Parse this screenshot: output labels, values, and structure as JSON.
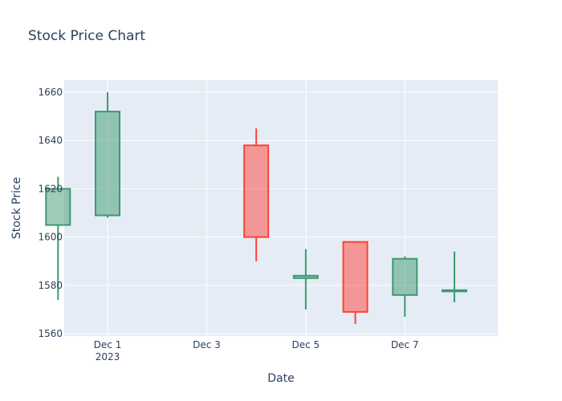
{
  "chart_data": {
    "type": "candlestick",
    "title": "Stock Price Chart",
    "xlabel": "Date",
    "ylabel": "Stock Price",
    "year_label": "2023",
    "ylim": [
      1559,
      1665
    ],
    "xlim": [
      "2023-11-30T03:00",
      "2023-12-08T21:00"
    ],
    "y_ticks": [
      1560,
      1580,
      1600,
      1620,
      1640,
      1660
    ],
    "x_ticks": [
      {
        "date": "2023-12-01",
        "label": "Dec 1"
      },
      {
        "date": "2023-12-03",
        "label": "Dec 3"
      },
      {
        "date": "2023-12-05",
        "label": "Dec 5"
      },
      {
        "date": "2023-12-07",
        "label": "Dec 7"
      }
    ],
    "colors": {
      "increasing_line": "#3d9970",
      "increasing_fill": "rgba(61,153,112,0.5)",
      "decreasing_line": "#ff4136",
      "decreasing_fill": "rgba(255,65,54,0.5)",
      "plot_bg": "#e5ecf6",
      "grid": "#ffffff",
      "text": "#2a3f5f"
    },
    "grid": true,
    "legend": false,
    "candles": [
      {
        "date": "2023-11-30",
        "open": 1605,
        "high": 1625,
        "low": 1574,
        "close": 1620
      },
      {
        "date": "2023-12-01",
        "open": 1609,
        "high": 1660,
        "low": 1608,
        "close": 1652
      },
      {
        "date": "2023-12-04",
        "open": 1638,
        "high": 1645,
        "low": 1590,
        "close": 1600
      },
      {
        "date": "2023-12-05",
        "open": 1583,
        "high": 1595,
        "low": 1570,
        "close": 1584
      },
      {
        "date": "2023-12-06",
        "open": 1598,
        "high": 1598,
        "low": 1564,
        "close": 1569
      },
      {
        "date": "2023-12-07",
        "open": 1576,
        "high": 1592,
        "low": 1567,
        "close": 1591
      },
      {
        "date": "2023-12-08",
        "open": 1578,
        "high": 1594,
        "low": 1573,
        "close": 1578
      }
    ]
  }
}
